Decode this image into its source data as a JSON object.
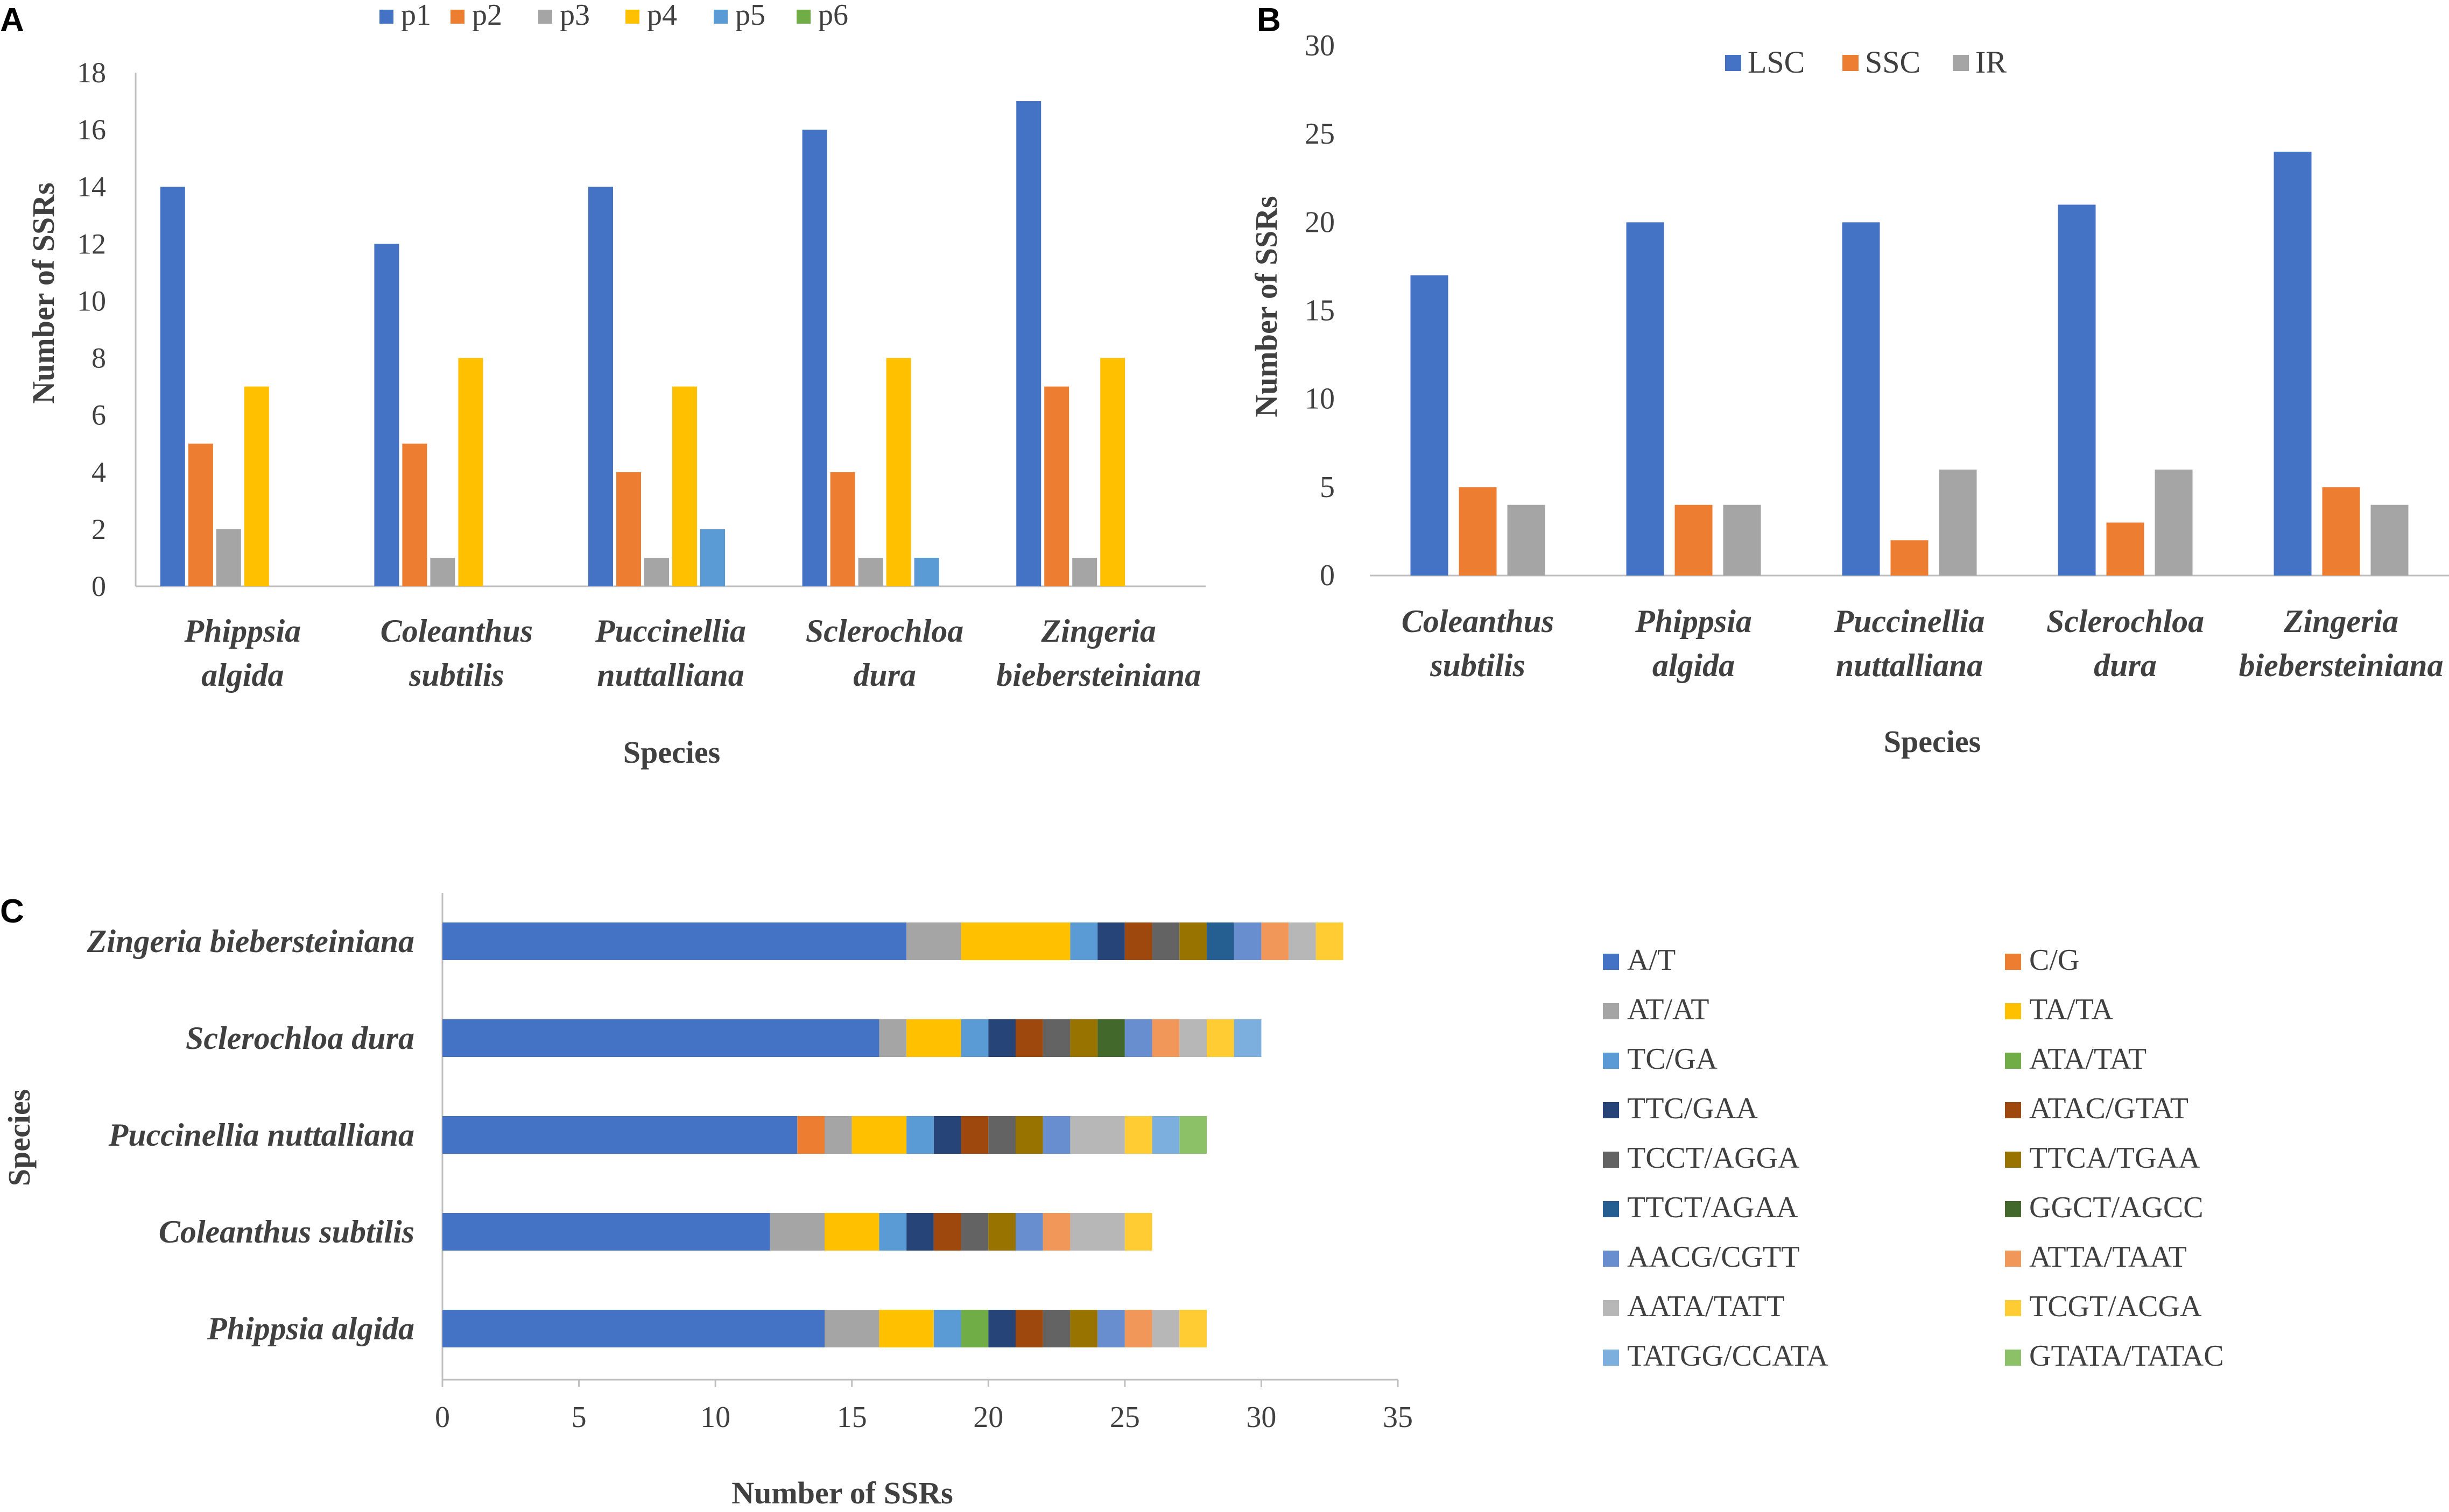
{
  "panels": {
    "a": {
      "letter": "A",
      "chart_data": {
        "type": "bar",
        "title": "",
        "xlabel": "Species",
        "ylabel": "Number of SSRs",
        "ylim": [
          0,
          18
        ],
        "yticks": [
          "0",
          "2",
          "4",
          "6",
          "8",
          "10",
          "12",
          "14",
          "16",
          "18"
        ],
        "categories": [
          "Phippsia algida",
          "Coleanthus subtilis",
          "Puccinellia nuttalliana",
          "Sclerochloa dura",
          "Zingeria biebersteiniana"
        ],
        "category_lines": [
          [
            "Phippsia",
            "algida"
          ],
          [
            "Coleanthus",
            "subtilis"
          ],
          [
            "Puccinellia",
            "nuttalliana"
          ],
          [
            "Sclerochloa",
            "dura"
          ],
          [
            "Zingeria",
            "biebersteiniana"
          ]
        ],
        "legend_position": "top",
        "series": [
          {
            "name": "p1",
            "color": "#4472C4",
            "values": [
              14,
              12,
              14,
              16,
              17
            ]
          },
          {
            "name": "p2",
            "color": "#ED7D31",
            "values": [
              5,
              5,
              4,
              4,
              7
            ]
          },
          {
            "name": "p3",
            "color": "#A5A5A5",
            "values": [
              2,
              1,
              1,
              1,
              1
            ]
          },
          {
            "name": "p4",
            "color": "#FFC000",
            "values": [
              7,
              8,
              7,
              8,
              8
            ]
          },
          {
            "name": "p5",
            "color": "#5B9BD5",
            "values": [
              0,
              0,
              2,
              1,
              0
            ]
          },
          {
            "name": "p6",
            "color": "#70AD47",
            "values": [
              0,
              0,
              0,
              0,
              0
            ]
          }
        ]
      }
    },
    "b": {
      "letter": "B",
      "chart_data": {
        "type": "bar",
        "title": "",
        "xlabel": "Species",
        "ylabel": "Number of SSRs",
        "ylim": [
          0,
          30
        ],
        "yticks": [
          "0",
          "5",
          "10",
          "15",
          "20",
          "25",
          "30"
        ],
        "categories": [
          "Coleanthus subtilis",
          "Phippsia algida",
          "Puccinellia nuttalliana",
          "Sclerochloa dura",
          "Zingeria biebersteiniana"
        ],
        "category_lines": [
          [
            "Coleanthus",
            "subtilis"
          ],
          [
            "Phippsia",
            "algida"
          ],
          [
            "Puccinellia",
            "nuttalliana"
          ],
          [
            "Sclerochloa",
            "dura"
          ],
          [
            "Zingeria",
            "biebersteiniana"
          ]
        ],
        "legend_position": "top",
        "series": [
          {
            "name": "LSC",
            "color": "#4472C4",
            "values": [
              17,
              20,
              20,
              21,
              24
            ]
          },
          {
            "name": "SSC",
            "color": "#ED7D31",
            "values": [
              5,
              4,
              2,
              3,
              5
            ]
          },
          {
            "name": "IR",
            "color": "#A5A5A5",
            "values": [
              4,
              4,
              6,
              6,
              4
            ]
          }
        ]
      }
    },
    "c": {
      "letter": "C",
      "chart_data": {
        "type": "stacked-horizontal-bar",
        "title": "",
        "xlabel": "Number of SSRs",
        "ylabel": "Species",
        "xlim": [
          0,
          35
        ],
        "xticks": [
          "0",
          "5",
          "10",
          "15",
          "20",
          "25",
          "30",
          "35"
        ],
        "categories": [
          "Zingeria biebersteiniana",
          "Sclerochloa dura",
          "Puccinellia nuttalliana",
          "Coleanthus subtilis",
          "Phippsia algida"
        ],
        "legend_position": "right",
        "series": [
          {
            "name": "A/T",
            "color": "#4472C4",
            "values": [
              17,
              16,
              13,
              12,
              14
            ]
          },
          {
            "name": "C/G",
            "color": "#ED7D31",
            "values": [
              0,
              0,
              1,
              0,
              0
            ]
          },
          {
            "name": "AT/AT",
            "color": "#A5A5A5",
            "values": [
              2,
              1,
              1,
              2,
              2
            ]
          },
          {
            "name": "TA/TA",
            "color": "#FFC000",
            "values": [
              4,
              2,
              2,
              2,
              2
            ]
          },
          {
            "name": "TC/GA",
            "color": "#5B9BD5",
            "values": [
              1,
              1,
              1,
              1,
              1
            ]
          },
          {
            "name": "ATA/TAT",
            "color": "#70AD47",
            "values": [
              0,
              0,
              0,
              0,
              1
            ]
          },
          {
            "name": "TTC/GAA",
            "color": "#264478",
            "values": [
              1,
              1,
              1,
              1,
              1
            ]
          },
          {
            "name": "ATAC/GTAT",
            "color": "#9E480E",
            "values": [
              1,
              1,
              1,
              1,
              1
            ]
          },
          {
            "name": "TCCT/AGGA",
            "color": "#636363",
            "values": [
              1,
              1,
              1,
              1,
              1
            ]
          },
          {
            "name": "TTCA/TGAA",
            "color": "#997300",
            "values": [
              1,
              1,
              1,
              1,
              1
            ]
          },
          {
            "name": "TTCT/AGAA",
            "color": "#255E91",
            "values": [
              1,
              0,
              0,
              0,
              0
            ]
          },
          {
            "name": "GGCT/AGCC",
            "color": "#43682B",
            "values": [
              0,
              1,
              0,
              0,
              0
            ]
          },
          {
            "name": "AACG/CGTT",
            "color": "#698ED0",
            "values": [
              1,
              1,
              1,
              1,
              1
            ]
          },
          {
            "name": "ATTA/TAAT",
            "color": "#F1975A",
            "values": [
              1,
              1,
              0,
              1,
              1
            ]
          },
          {
            "name": "AATA/TATT",
            "color": "#B7B7B7",
            "values": [
              1,
              1,
              2,
              2,
              1
            ]
          },
          {
            "name": "TCGT/ACGA",
            "color": "#FFCD33",
            "values": [
              1,
              1,
              1,
              1,
              1
            ]
          },
          {
            "name": "TATGG/CCATA",
            "color": "#7CAFDD",
            "values": [
              0,
              1,
              1,
              0,
              0
            ]
          },
          {
            "name": "GTATA/TATAC",
            "color": "#8CC168",
            "values": [
              0,
              0,
              1,
              0,
              0
            ]
          }
        ]
      }
    }
  }
}
